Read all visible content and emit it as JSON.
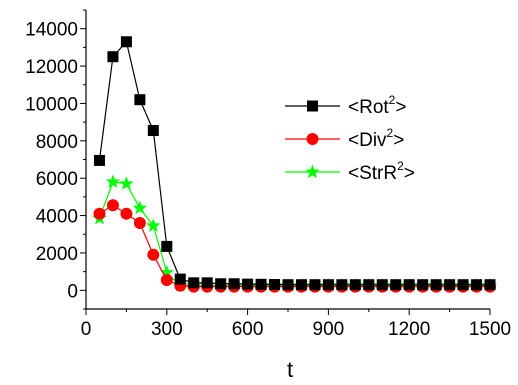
{
  "chart_data": {
    "type": "line",
    "xlabel": "t",
    "ylabel": "",
    "xlim": [
      0,
      1500
    ],
    "ylim": [
      -1000,
      15000
    ],
    "xticks": [
      0,
      300,
      600,
      900,
      1200,
      1500
    ],
    "yticks": [
      0,
      2000,
      4000,
      6000,
      8000,
      10000,
      12000,
      14000
    ],
    "grid": false,
    "legend_position": "right-middle",
    "x": [
      50,
      100,
      150,
      200,
      250,
      300,
      350,
      400,
      450,
      500,
      550,
      600,
      650,
      700,
      750,
      800,
      850,
      900,
      950,
      1000,
      1050,
      1100,
      1150,
      1200,
      1250,
      1300,
      1350,
      1400,
      1450,
      1500
    ],
    "series": [
      {
        "name": "<Rot",
        "name_sup": "2",
        "name_tail": ">",
        "color": "#000000",
        "marker": "square",
        "values": [
          6950,
          12500,
          13300,
          10200,
          8550,
          2350,
          600,
          400,
          400,
          350,
          350,
          330,
          320,
          310,
          300,
          300,
          300,
          300,
          300,
          300,
          300,
          300,
          300,
          300,
          300,
          300,
          300,
          300,
          300,
          300
        ]
      },
      {
        "name": "<Div",
        "name_sup": "2",
        "name_tail": ">",
        "color": "#ff0000",
        "marker": "circle",
        "values": [
          4100,
          4550,
          4100,
          3600,
          1900,
          550,
          250,
          200,
          200,
          200,
          200,
          200,
          200,
          200,
          200,
          200,
          200,
          200,
          200,
          200,
          200,
          200,
          200,
          200,
          200,
          200,
          200,
          200,
          200,
          200
        ]
      },
      {
        "name": "<StrR",
        "name_sup": "2",
        "name_tail": ">",
        "color": "#00ff00",
        "marker": "star",
        "values": [
          3850,
          5800,
          5700,
          4400,
          3450,
          950,
          250,
          250,
          250,
          250,
          250,
          250,
          250,
          250,
          250,
          250,
          250,
          250,
          250,
          250,
          250,
          250,
          250,
          250,
          250,
          250,
          250,
          250,
          250,
          250
        ]
      }
    ]
  }
}
